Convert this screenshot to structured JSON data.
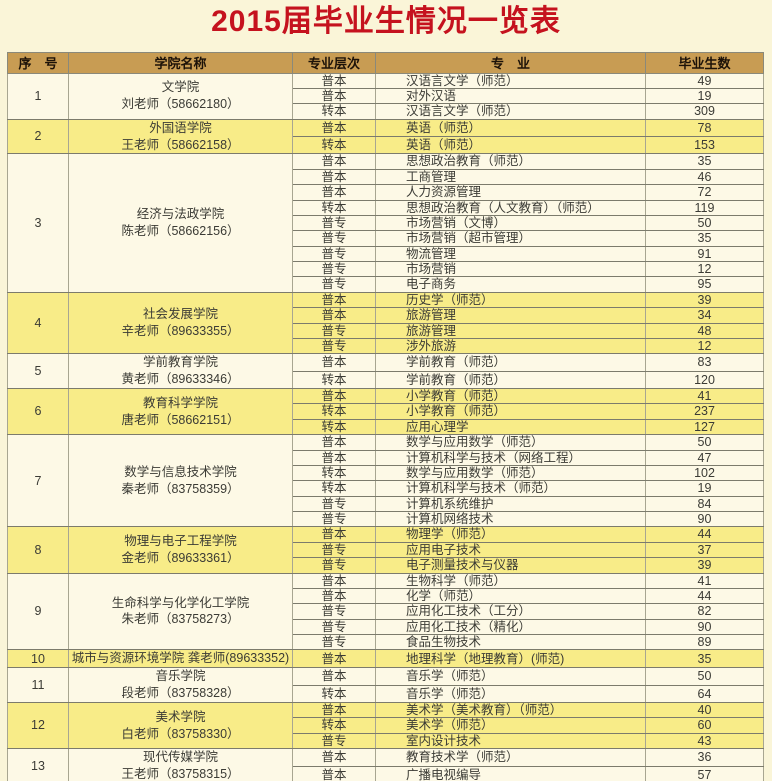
{
  "page": {
    "title": "2015届毕业生情况一览表"
  },
  "colors": {
    "page_bg": "#faf5d8",
    "title_red": "#c5121e",
    "header_bg": "#c89c53",
    "row_yellow": "#f8ec88",
    "row_cream": "#fdf9e6"
  },
  "table": {
    "headers": [
      "序　号",
      "学院名称",
      "专业层次",
      "专　业",
      "毕业生数"
    ],
    "groups": [
      {
        "no": "1",
        "college": "文学院\n刘老师（58662180）",
        "majors": [
          {
            "level": "普本",
            "major": "汉语言文学（师范）",
            "count": "49"
          },
          {
            "level": "普本",
            "major": "对外汉语",
            "count": "19"
          },
          {
            "level": "转本",
            "major": "汉语言文学（师范）",
            "count": "309"
          }
        ]
      },
      {
        "no": "2",
        "college": "外国语学院\n王老师（58662158）",
        "majors": [
          {
            "level": "普本",
            "major": "英语（师范）",
            "count": "78"
          },
          {
            "level": "转本",
            "major": "英语（师范）",
            "count": "153"
          }
        ]
      },
      {
        "no": "3",
        "college": "经济与法政学院\n陈老师（58662156）",
        "majors": [
          {
            "level": "普本",
            "major": "思想政治教育（师范）",
            "count": "35"
          },
          {
            "level": "普本",
            "major": "工商管理",
            "count": "46"
          },
          {
            "level": "普本",
            "major": "人力资源管理",
            "count": "72"
          },
          {
            "level": "转本",
            "major": "思想政治教育（人文教育）（师范）",
            "count": "119"
          },
          {
            "level": "普专",
            "major": "市场营销（文博）",
            "count": "50"
          },
          {
            "level": "普专",
            "major": "市场营销（超市管理）",
            "count": "35"
          },
          {
            "level": "普专",
            "major": "物流管理",
            "count": "91"
          },
          {
            "level": "普专",
            "major": "市场营销",
            "count": "12"
          },
          {
            "level": "普专",
            "major": "电子商务",
            "count": "95"
          }
        ]
      },
      {
        "no": "4",
        "college": "社会发展学院\n辛老师（89633355）",
        "majors": [
          {
            "level": "普本",
            "major": "历史学（师范）",
            "count": "39"
          },
          {
            "level": "普本",
            "major": "旅游管理",
            "count": "34"
          },
          {
            "level": "普专",
            "major": "旅游管理",
            "count": "48"
          },
          {
            "level": "普专",
            "major": "涉外旅游",
            "count": "12"
          }
        ]
      },
      {
        "no": "5",
        "college": "学前教育学院\n黄老师（89633346）",
        "majors": [
          {
            "level": "普本",
            "major": "学前教育（师范）",
            "count": "83"
          },
          {
            "level": "转本",
            "major": "学前教育（师范）",
            "count": "120"
          }
        ]
      },
      {
        "no": "6",
        "college": "教育科学学院\n唐老师（58662151）",
        "majors": [
          {
            "level": "普本",
            "major": "小学教育（师范）",
            "count": "41"
          },
          {
            "level": "转本",
            "major": "小学教育（师范）",
            "count": "237"
          },
          {
            "level": "转本",
            "major": "应用心理学",
            "count": "127"
          }
        ]
      },
      {
        "no": "7",
        "college": "数学与信息技术学院\n秦老师（83758359）",
        "majors": [
          {
            "level": "普本",
            "major": "数学与应用数学（师范）",
            "count": "50"
          },
          {
            "level": "普本",
            "major": "计算机科学与技术（网络工程）",
            "count": "47"
          },
          {
            "level": "转本",
            "major": "数学与应用数学（师范）",
            "count": "102"
          },
          {
            "level": "转本",
            "major": "计算机科学与技术（师范）",
            "count": "19"
          },
          {
            "level": "普专",
            "major": "计算机系统维护",
            "count": "84"
          },
          {
            "level": "普专",
            "major": "计算机网络技术",
            "count": "90"
          }
        ]
      },
      {
        "no": "8",
        "college": "物理与电子工程学院\n金老师（89633361）",
        "majors": [
          {
            "level": "普本",
            "major": "物理学（师范）",
            "count": "44"
          },
          {
            "level": "普专",
            "major": "应用电子技术",
            "count": "37"
          },
          {
            "level": "普专",
            "major": "电子测量技术与仪器",
            "count": "39"
          }
        ]
      },
      {
        "no": "9",
        "college": "生命科学与化学化工学院\n朱老师（83758273）",
        "majors": [
          {
            "level": "普本",
            "major": "生物科学（师范）",
            "count": "41"
          },
          {
            "level": "普本",
            "major": "化学（师范）",
            "count": "44"
          },
          {
            "level": "普专",
            "major": "应用化工技术（工分）",
            "count": "82"
          },
          {
            "level": "普专",
            "major": "应用化工技术（精化）",
            "count": "90"
          },
          {
            "level": "普专",
            "major": "食品生物技术",
            "count": "89"
          }
        ]
      },
      {
        "no": "10",
        "college": "城市与资源环境学院 龚老师(89633352)",
        "majors": [
          {
            "level": "普本",
            "major": "地理科学（地理教育）(师范)",
            "count": "35"
          }
        ]
      },
      {
        "no": "11",
        "college": "音乐学院\n段老师（83758328）",
        "majors": [
          {
            "level": "普本",
            "major": "音乐学（师范）",
            "count": "50"
          },
          {
            "level": "转本",
            "major": "音乐学（师范）",
            "count": "64"
          }
        ]
      },
      {
        "no": "12",
        "college": "美术学院\n白老师（83758330）",
        "majors": [
          {
            "level": "普本",
            "major": "美术学（美术教育）（师范）",
            "count": "40"
          },
          {
            "level": "转本",
            "major": "美术学（师范）",
            "count": "60"
          },
          {
            "level": "普专",
            "major": "室内设计技术",
            "count": "43"
          }
        ]
      },
      {
        "no": "13",
        "college": "现代传媒学院\n王老师（83758315）",
        "majors": [
          {
            "level": "普本",
            "major": "教育技术学（师范）",
            "count": "36"
          },
          {
            "level": "普本",
            "major": "广播电视编导",
            "count": "57"
          }
        ]
      }
    ]
  }
}
